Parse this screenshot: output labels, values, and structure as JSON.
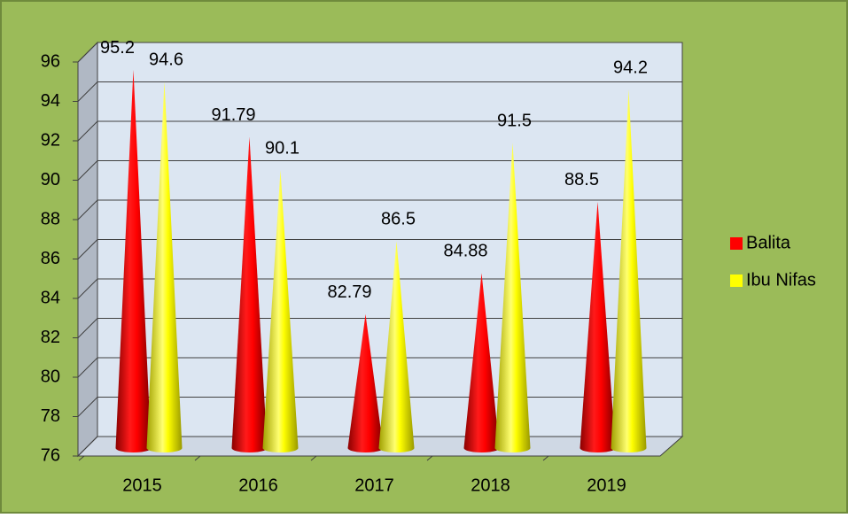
{
  "chart_data": {
    "type": "cone",
    "categories": [
      "2015",
      "2016",
      "2017",
      "2018",
      "2019"
    ],
    "series": [
      {
        "name": "Balita",
        "color": "#ff0000",
        "values": [
          95.2,
          91.79,
          82.79,
          84.88,
          88.5
        ]
      },
      {
        "name": "Ibu Nifas",
        "color": "#ffff00",
        "values": [
          94.6,
          90.1,
          86.5,
          91.5,
          94.2
        ]
      }
    ],
    "ylim": [
      76,
      96
    ],
    "yticks": [
      76,
      78,
      80,
      82,
      84,
      86,
      88,
      90,
      92,
      94,
      96
    ],
    "grid": true,
    "legend": "right"
  }
}
